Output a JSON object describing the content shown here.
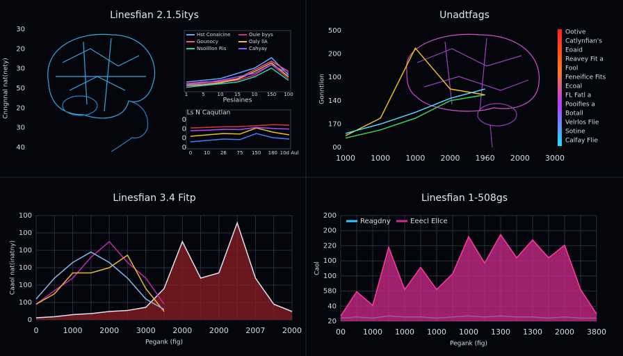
{
  "chart_data": [
    {
      "type": "illustration",
      "title": "Linesfian 2.1.5itys",
      "ylabel": "Cnngnnal nat(nety)",
      "ylabels": [
        "30",
        "20",
        "30",
        "50",
        "20",
        "30",
        "40"
      ]
    },
    {
      "type": "line",
      "ylim": [
        0,
        100
      ],
      "categories": [
        "1",
        "5",
        "10",
        "15",
        "10",
        "150",
        "100"
      ],
      "xlabel": "Pesiaines",
      "legend": "upper",
      "series": [
        {
          "name": "Hst Conaicine",
          "color": "#5aa8ff",
          "values": [
            20,
            25,
            30,
            45,
            60,
            90,
            40
          ]
        },
        {
          "name": "Ouie byys",
          "color": "#d0306a",
          "values": [
            10,
            15,
            20,
            25,
            40,
            70,
            30
          ]
        },
        {
          "name": "Gounocy",
          "color": "#ff4fa0",
          "values": [
            15,
            20,
            22,
            30,
            55,
            80,
            50
          ]
        },
        {
          "name": "Oaly llA",
          "color": "#f2c230",
          "values": [
            10,
            12,
            18,
            28,
            50,
            75,
            35
          ]
        },
        {
          "name": "Nsoilllon Ris",
          "color": "#30d0c0",
          "values": [
            5,
            10,
            15,
            20,
            35,
            60,
            25
          ]
        },
        {
          "name": "Cahyay",
          "color": "#8a5cff",
          "values": [
            12,
            18,
            25,
            35,
            45,
            70,
            45
          ]
        }
      ]
    },
    {
      "type": "line",
      "title": "Ls N Caqutlan",
      "ylim": [
        0,
        100
      ],
      "ylabels": [
        "0",
        "0",
        "0",
        "0"
      ],
      "categories": [
        "0",
        "10",
        "26",
        "75",
        "150",
        "180",
        "10d Aul"
      ],
      "series": [
        {
          "color": "#e03040",
          "values": [
            70,
            72,
            74,
            75,
            78,
            82,
            80
          ]
        },
        {
          "color": "#f0c020",
          "values": [
            40,
            45,
            50,
            48,
            70,
            55,
            45
          ]
        },
        {
          "color": "#a050ff",
          "values": [
            60,
            62,
            65,
            64,
            72,
            68,
            66
          ]
        },
        {
          "color": "#4080ff",
          "values": [
            20,
            25,
            30,
            28,
            50,
            35,
            30
          ]
        }
      ]
    },
    {
      "type": "line",
      "title": "Unadtfags",
      "ylabel": "Gonntlion",
      "ylim": [
        0,
        100
      ],
      "ylabels": [
        "500",
        "200",
        "100",
        "140",
        "170",
        "00"
      ],
      "categories": [
        "1000",
        "1000",
        "1000",
        "2000",
        "1960",
        "2000",
        "3000"
      ],
      "colorbar_labels": [
        "Ootive",
        "Catlynfian's",
        "Eoaid",
        "Reavey Fit a",
        "Fool",
        "Feneifice Fits",
        "Ecoal",
        "FL Fatl a",
        "Pooifies a",
        "Botall",
        "Velrlos Flie",
        "Sotine",
        "Calfay Flie"
      ],
      "series": [
        {
          "color": "#f0c020",
          "values": [
            10,
            25,
            85,
            50,
            45,
            null,
            null
          ]
        },
        {
          "color": "#40d060",
          "values": [
            8,
            15,
            25,
            40,
            45,
            null,
            null
          ]
        },
        {
          "color": "#50d8ff",
          "values": [
            12,
            20,
            30,
            42,
            50,
            null,
            null
          ]
        }
      ]
    },
    {
      "type": "line",
      "title": "Linesfian 3.4 Fitp",
      "ylabel": "Caaol nat(inatny)",
      "xlabel": "Pegank (fig)",
      "ylim": [
        0,
        100
      ],
      "grid": true,
      "ylabels": [
        "100",
        "100",
        "100",
        "100",
        "100",
        "100",
        "0"
      ],
      "categories": [
        "0",
        null,
        "1000",
        null,
        "2000",
        null,
        "3000",
        null,
        "2000",
        null,
        "2000",
        null,
        "2007",
        null,
        "2000"
      ],
      "series": [
        {
          "color": "#8a1e22",
          "area": true,
          "values": [
            2,
            3,
            5,
            6,
            8,
            9,
            12,
            30,
            75,
            40,
            45,
            93,
            40,
            15,
            8
          ]
        },
        {
          "color": "#c42aa8",
          "values": [
            15,
            28,
            40,
            60,
            75,
            55,
            40,
            15,
            null,
            null,
            null,
            null,
            null,
            null,
            null
          ]
        },
        {
          "color": "#e8b830",
          "values": [
            15,
            25,
            45,
            45,
            50,
            62,
            30,
            8,
            null,
            null,
            null,
            null,
            null,
            null,
            null
          ]
        },
        {
          "color": "#8ab8e8",
          "values": [
            20,
            40,
            55,
            65,
            55,
            40,
            20,
            10,
            null,
            null,
            null,
            null,
            null,
            null,
            null
          ]
        }
      ]
    },
    {
      "type": "line",
      "title": "Linesfian 1-508gs",
      "ylabel": "Caol",
      "xlabel": "Pegank (fig)",
      "ylim": [
        0,
        100
      ],
      "grid": true,
      "legend": "upper left",
      "ylabels": [
        "200",
        "200",
        "220",
        "100",
        "100",
        "580",
        "40",
        "20"
      ],
      "categories": [
        "00",
        null,
        "1000",
        null,
        "1000",
        null,
        "1000",
        null,
        "1000",
        null,
        "1300",
        null,
        "1300",
        null,
        "2000",
        null,
        "3800"
      ],
      "series": [
        {
          "name": "Reagdny",
          "color": "#30c8ff",
          "values": [
            3,
            4,
            3,
            5,
            4,
            4,
            3,
            4,
            5,
            4,
            5,
            4,
            4,
            3,
            4,
            3,
            3
          ]
        },
        {
          "name": "Eeecl Ellce",
          "color": "#d02a8a",
          "area": true,
          "values": [
            5,
            28,
            15,
            70,
            30,
            51,
            30,
            45,
            80,
            55,
            82,
            60,
            77,
            60,
            72,
            30,
            7
          ]
        }
      ]
    }
  ]
}
